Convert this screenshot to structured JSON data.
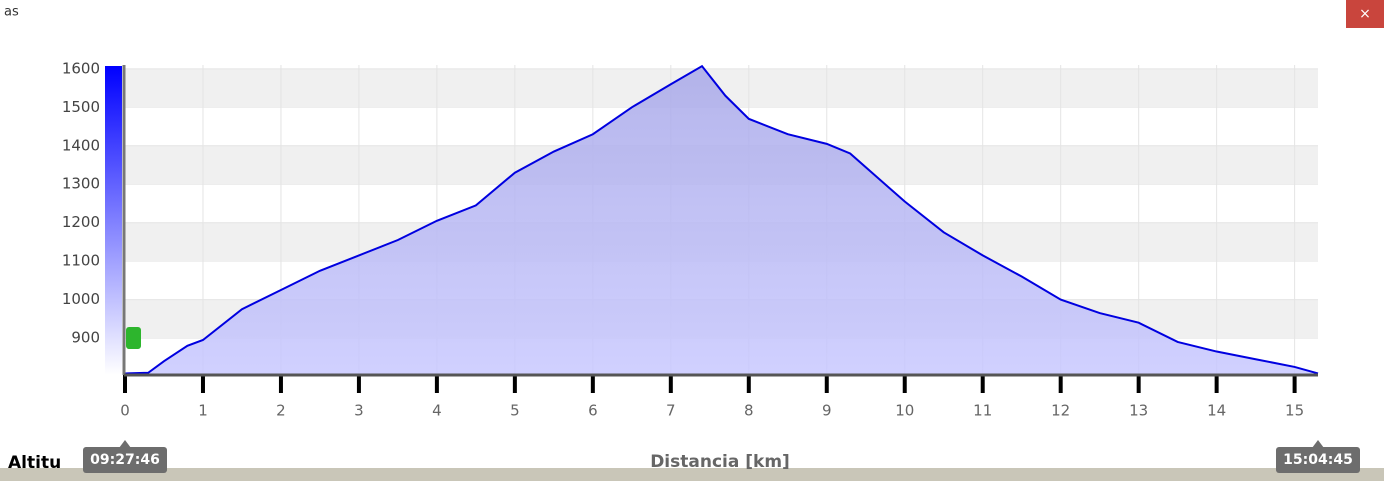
{
  "header": {
    "title": "as",
    "close": "×"
  },
  "chart_data": {
    "type": "area",
    "x_label": "Distancia [km]",
    "y_label": "Altitu",
    "start_time": "09:27:46",
    "end_time": "15:04:45",
    "x": [
      0,
      0.3,
      0.5,
      0.8,
      1,
      1.5,
      2,
      2.5,
      3,
      3.5,
      4,
      4.5,
      5,
      5.5,
      6,
      6.5,
      7,
      7.4,
      7.7,
      8,
      8.5,
      9,
      9.3,
      10,
      10.5,
      11,
      11.5,
      12,
      12.5,
      13,
      13.5,
      14,
      14.5,
      15,
      15.3
    ],
    "values": [
      808,
      810,
      840,
      880,
      895,
      975,
      1025,
      1075,
      1115,
      1155,
      1205,
      1245,
      1330,
      1385,
      1430,
      1500,
      1560,
      1607,
      1530,
      1470,
      1430,
      1405,
      1380,
      1255,
      1175,
      1115,
      1060,
      1000,
      965,
      940,
      890,
      865,
      845,
      825,
      808
    ],
    "color": "#0000e0",
    "fill": "#9a9af0",
    "xlim": [
      0,
      15.3
    ],
    "ylim": [
      804,
      1610
    ],
    "xticks": [
      0,
      1,
      2,
      3,
      4,
      5,
      6,
      7,
      8,
      9,
      10,
      11,
      12,
      13,
      14,
      15
    ],
    "yticks": [
      900,
      1000,
      1100,
      1200,
      1300,
      1400,
      1500,
      1600
    ],
    "grid": true
  }
}
